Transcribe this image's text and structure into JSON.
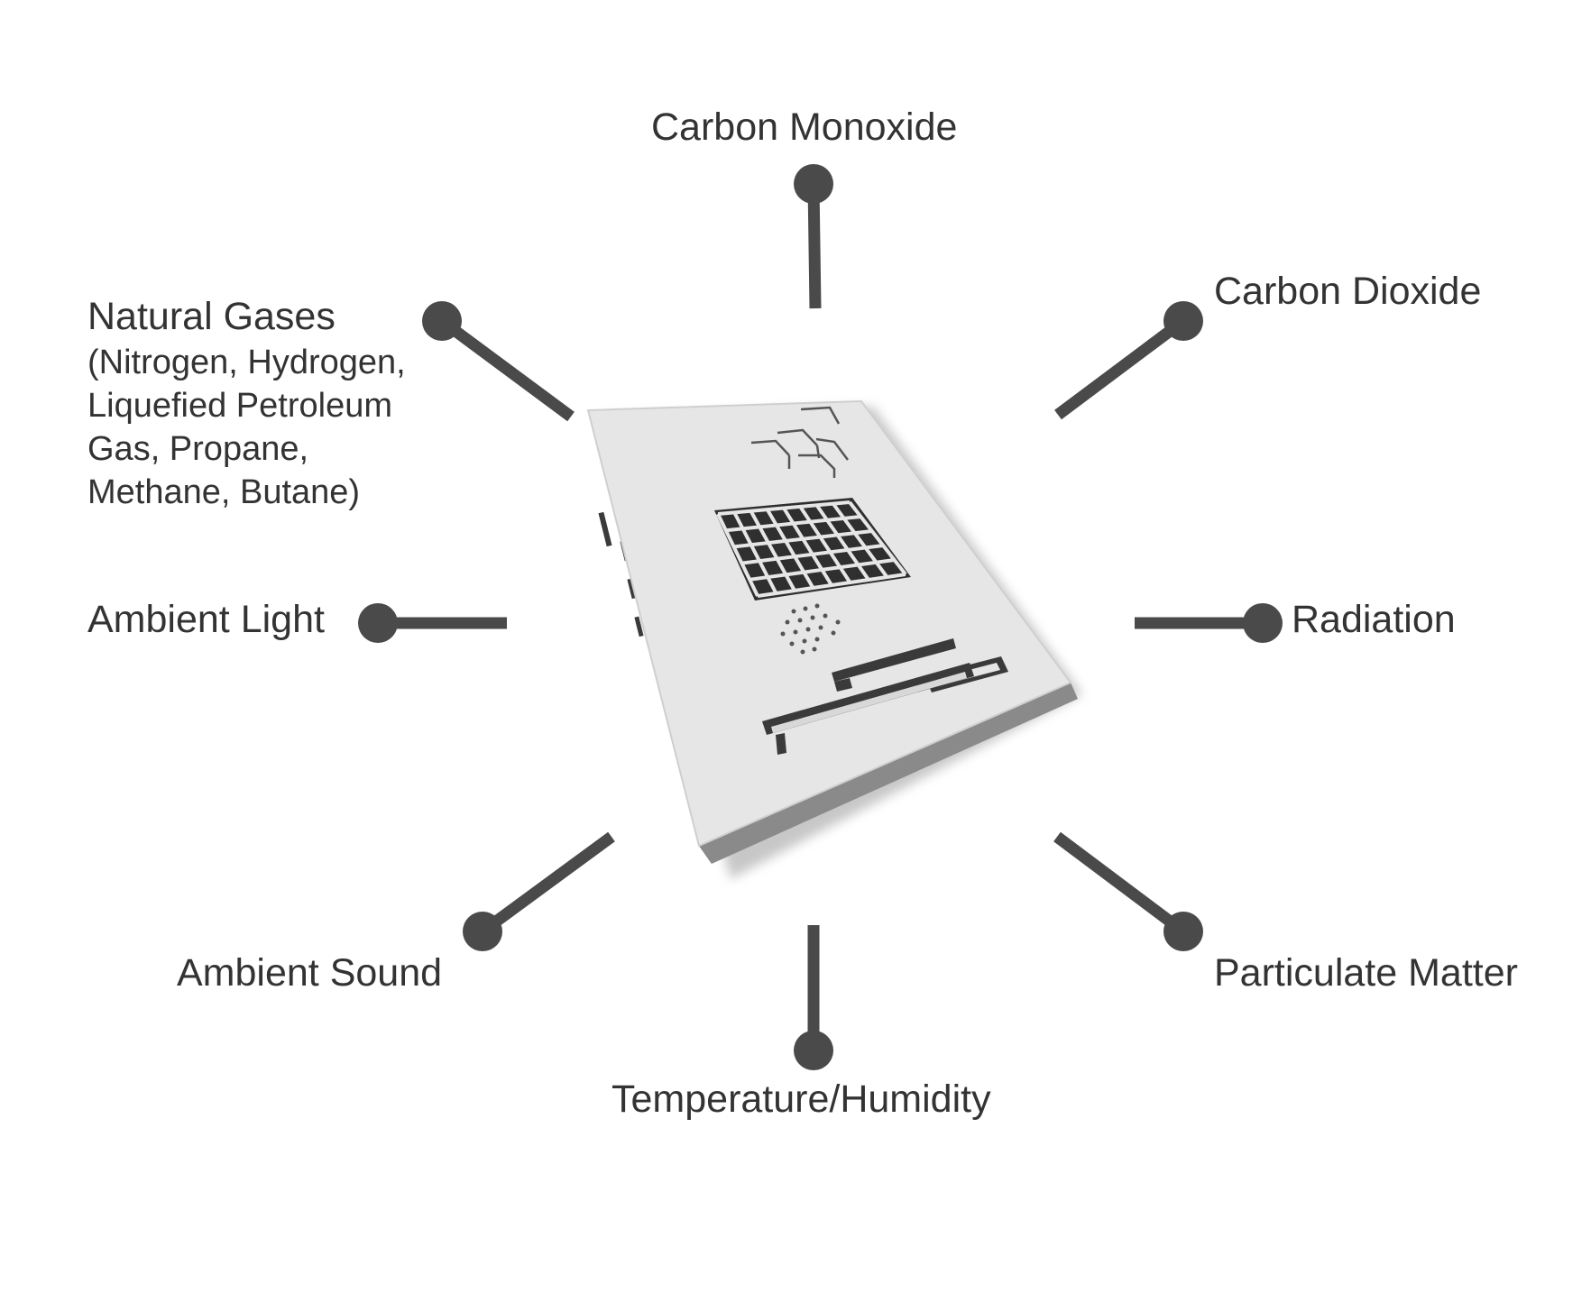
{
  "diagram": {
    "colors": {
      "connector": "#4a4a4a",
      "text": "#333333",
      "device_top": "#e5e5e5",
      "device_side": "#7a7a7a"
    },
    "device": {
      "icon": "sensor-box-device"
    },
    "sensors": {
      "carbon_monoxide": "Carbon Monoxide",
      "carbon_dioxide": "Carbon Dioxide",
      "natural_gases": "Natural Gases",
      "natural_gases_detail": "(Nitrogen, Hydrogen,\nLiquefied Petroleum\nGas, Propane,\nMethane, Butane)",
      "ambient_light": "Ambient Light",
      "radiation": "Radiation",
      "ambient_sound": "Ambient Sound",
      "particulate_matter": "Particulate Matter",
      "temperature_humidity": "Temperature/Humidity"
    }
  }
}
